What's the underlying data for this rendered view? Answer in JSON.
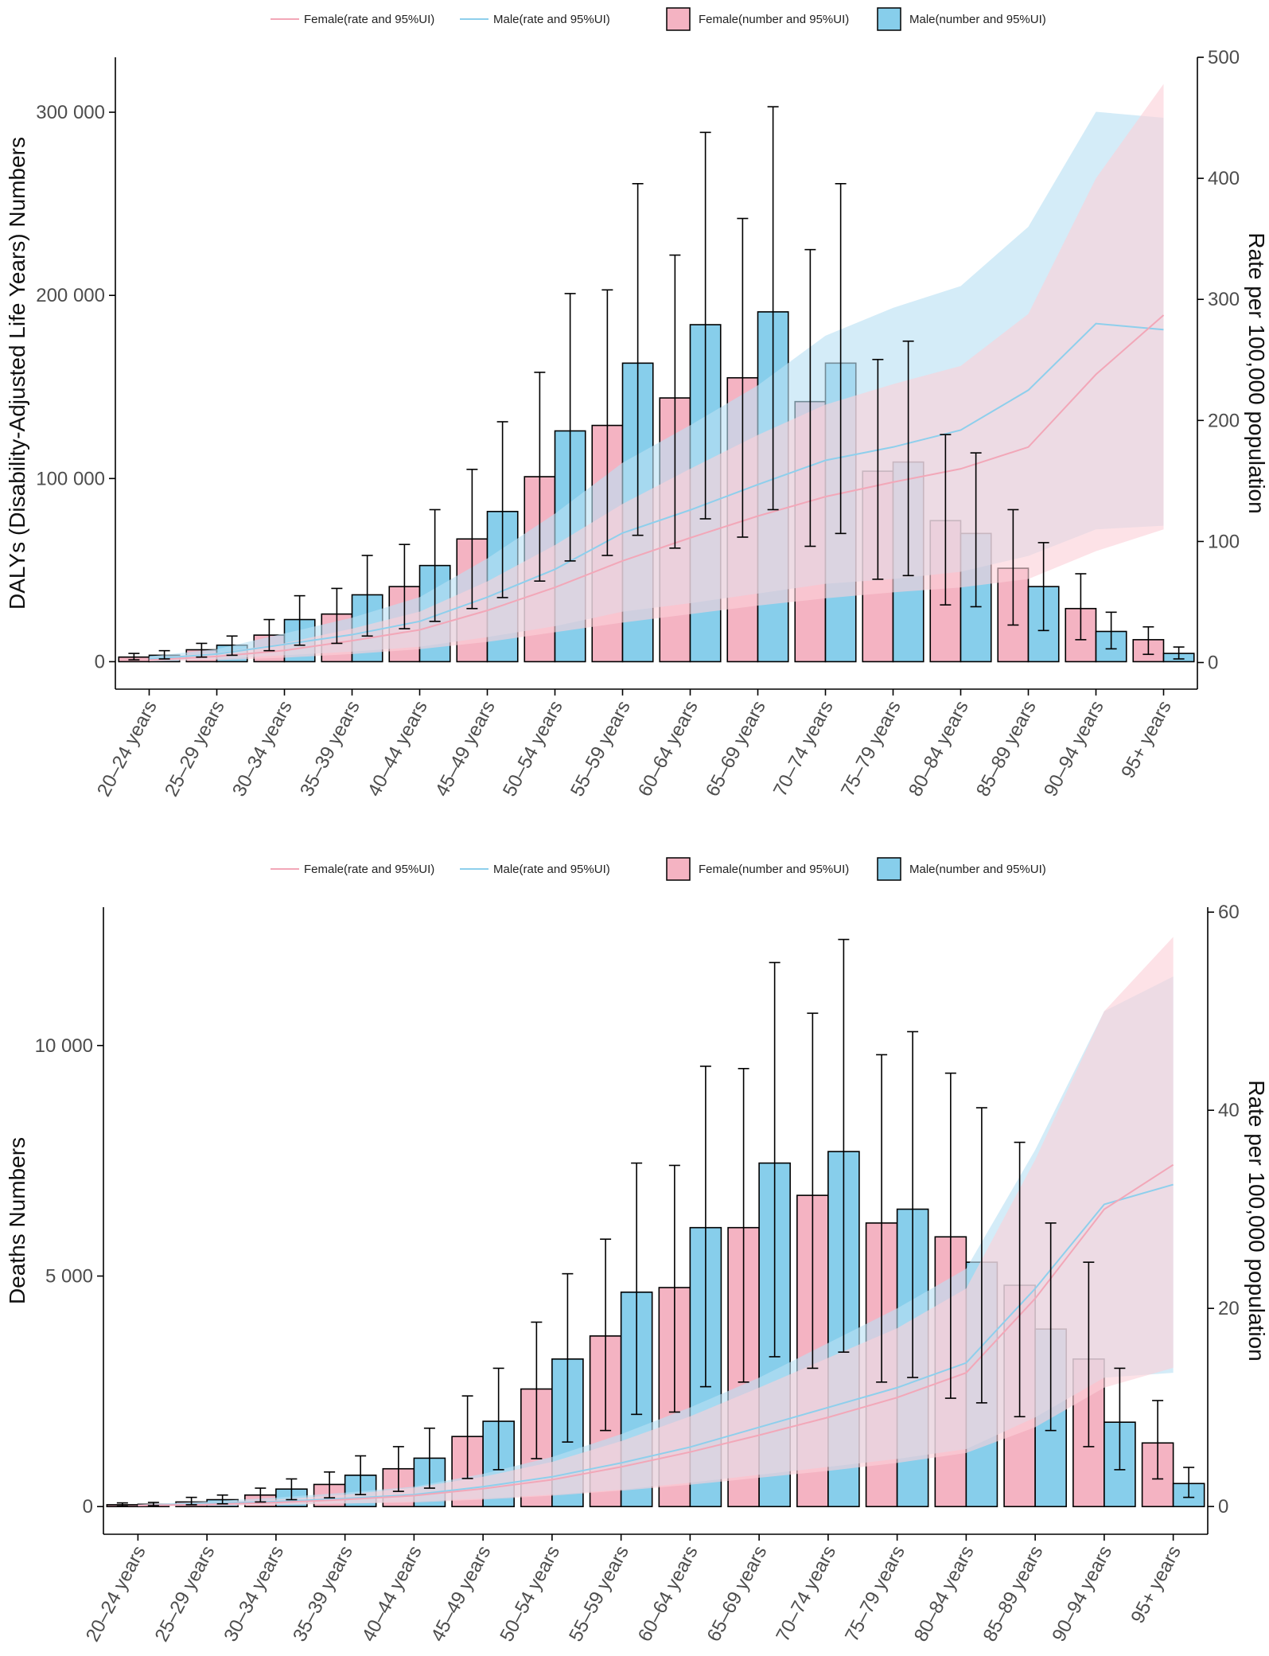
{
  "legend": {
    "female_rate": "Female(rate and 95%UI)",
    "male_rate": "Male(rate and 95%UI)",
    "female_number": "Female(number and 95%UI)",
    "male_number": "Male(number and 95%UI)"
  },
  "colors": {
    "female_bar": "#f4b3c2",
    "male_bar": "#87ceeb",
    "female_line": "#f2a7b8",
    "male_line": "#8ecfec",
    "female_band": "#fbd0d8",
    "male_band": "#b9e0f4",
    "axis": "#000000"
  },
  "chart_data": [
    {
      "type": "bar",
      "title": "",
      "xlabel": "",
      "ylabel": "DALYs (Disability-Adjusted Life Years) Numbers",
      "y2label": "Rate per 100,000 population",
      "categories": [
        "20–24 years",
        "25–29 years",
        "30–34 years",
        "35–39 years",
        "40–44 years",
        "45–49 years",
        "50–54 years",
        "55–59 years",
        "60–64 years",
        "65–69 years",
        "70–74 years",
        "75–79 years",
        "80–84 years",
        "85–89 years",
        "90–94 years",
        "95+ years"
      ],
      "ylim": [
        -15000,
        330000
      ],
      "yticks": [
        0,
        100000,
        200000,
        300000
      ],
      "ytick_labels": [
        "0",
        "100 000",
        "200 000",
        "300 000"
      ],
      "y2lim": [
        -22,
        500
      ],
      "y2ticks": [
        0,
        100,
        200,
        300,
        400,
        500
      ],
      "y2tick_labels": [
        "0",
        "100",
        "200",
        "300",
        "400",
        "500"
      ],
      "series": [
        {
          "name": "Female(number and 95%UI)",
          "values": [
            2500,
            6500,
            14500,
            26000,
            41000,
            67000,
            101000,
            129000,
            144000,
            155000,
            142000,
            104000,
            77000,
            51000,
            29000,
            12000
          ],
          "lower": [
            1000,
            2500,
            6000,
            10000,
            18000,
            29000,
            44000,
            58000,
            62000,
            68000,
            63000,
            45000,
            31000,
            20000,
            12000,
            4000
          ],
          "upper": [
            4500,
            10000,
            23000,
            40000,
            64000,
            105000,
            158000,
            203000,
            222000,
            242000,
            225000,
            165000,
            124000,
            83000,
            48000,
            19000
          ]
        },
        {
          "name": "Male(number and 95%UI)",
          "values": [
            3500,
            9000,
            23000,
            36500,
            52500,
            82000,
            126000,
            163000,
            184000,
            191000,
            163000,
            109000,
            70000,
            41000,
            16500,
            4500
          ],
          "lower": [
            1500,
            3500,
            9000,
            14000,
            22000,
            35000,
            55000,
            69000,
            78000,
            83000,
            70000,
            47000,
            30000,
            17000,
            7000,
            1500
          ],
          "upper": [
            6000,
            14000,
            36000,
            58000,
            83000,
            131000,
            201000,
            261000,
            289000,
            303000,
            261000,
            175000,
            114000,
            65000,
            27000,
            8000
          ]
        },
        {
          "name": "Female(rate and 95%UI)",
          "axis": "right",
          "values": [
            2,
            5,
            10,
            18,
            27,
            43,
            62,
            84,
            103,
            121,
            137,
            149,
            160,
            178,
            238,
            287
          ],
          "lower": [
            1,
            2,
            4,
            7,
            11,
            17,
            25,
            33,
            40,
            47,
            53,
            58,
            62,
            69,
            92,
            110
          ],
          "upper": [
            4,
            8,
            16,
            28,
            42,
            67,
            97,
            131,
            160,
            188,
            213,
            230,
            245,
            288,
            400,
            478
          ]
        },
        {
          "name": "Male(rate and 95%UI)",
          "axis": "right",
          "values": [
            3,
            7,
            15,
            23,
            34,
            54,
            77,
            107,
            126,
            147,
            167,
            178,
            192,
            225,
            280,
            275
          ],
          "lower": [
            1,
            3,
            6,
            9,
            13,
            21,
            30,
            42,
            49,
            57,
            65,
            69,
            75,
            88,
            110,
            113
          ],
          "upper": [
            5,
            11,
            24,
            37,
            54,
            86,
            123,
            165,
            196,
            229,
            270,
            293,
            311,
            360,
            455,
            450
          ]
        }
      ]
    },
    {
      "type": "bar",
      "title": "",
      "xlabel": "",
      "ylabel": "Deaths Numbers",
      "y2label": "Rate per 100,000 population",
      "categories": [
        "20–24 years",
        "25–29 years",
        "30–34 years",
        "35–39 years",
        "40–44 years",
        "45–49 years",
        "50–54 years",
        "55–59 years",
        "60–64 years",
        "65–69 years",
        "70–74 years",
        "75–79 years",
        "80–84 years",
        "85–89 years",
        "90–94 years",
        "95+ years"
      ],
      "ylim": [
        -600,
        13000
      ],
      "yticks": [
        0,
        5000,
        10000
      ],
      "ytick_labels": [
        "0",
        "5 000",
        "10 000"
      ],
      "y2lim": [
        -2.8,
        60.5
      ],
      "y2ticks": [
        0,
        20,
        40,
        60
      ],
      "y2tick_labels": [
        "0",
        "20",
        "40",
        "60"
      ],
      "series": [
        {
          "name": "Female(number and 95%UI)",
          "values": [
            40,
            100,
            250,
            480,
            820,
            1520,
            2550,
            3700,
            4750,
            6050,
            6750,
            6150,
            5850,
            4800,
            3200,
            1380
          ],
          "lower": [
            10,
            40,
            100,
            190,
            330,
            610,
            1040,
            1650,
            2050,
            2700,
            3000,
            2700,
            2350,
            1950,
            1300,
            600
          ],
          "upper": [
            80,
            200,
            400,
            750,
            1300,
            2400,
            4000,
            5800,
            7400,
            9500,
            10700,
            9800,
            9400,
            7900,
            5300,
            2300
          ]
        },
        {
          "name": "Male(number and 95%UI)",
          "values": [
            50,
            150,
            380,
            680,
            1050,
            1850,
            3200,
            4650,
            6050,
            7450,
            7700,
            6450,
            5300,
            3850,
            1830,
            500
          ],
          "lower": [
            20,
            60,
            150,
            260,
            400,
            800,
            1400,
            2000,
            2600,
            3250,
            3350,
            2800,
            2250,
            1650,
            800,
            200
          ],
          "upper": [
            90,
            250,
            600,
            1100,
            1700,
            3000,
            5050,
            7450,
            9550,
            11800,
            12300,
            10300,
            8650,
            6150,
            3000,
            850
          ]
        },
        {
          "name": "Female(rate and 95%UI)",
          "axis": "right",
          "values": [
            0.1,
            0.2,
            0.4,
            0.7,
            1.1,
            1.8,
            2.7,
            4.0,
            5.5,
            7.2,
            9.0,
            11.0,
            13.5,
            21.0,
            30.0,
            34.5
          ],
          "lower": [
            0.03,
            0.06,
            0.15,
            0.3,
            0.4,
            0.7,
            1.1,
            1.6,
            2.2,
            2.9,
            3.6,
            4.4,
            5.4,
            8.0,
            12.0,
            14.0
          ],
          "upper": [
            0.2,
            0.4,
            0.7,
            1.2,
            1.9,
            3.0,
            4.5,
            6.6,
            9.1,
            12.0,
            15.0,
            18.0,
            22.0,
            35.0,
            50.0,
            57.5
          ]
        },
        {
          "name": "Male(rate and 95%UI)",
          "axis": "right",
          "values": [
            0.1,
            0.3,
            0.5,
            0.8,
            1.2,
            2.0,
            3.0,
            4.4,
            6.0,
            8.0,
            10.0,
            12.0,
            14.5,
            22.0,
            30.5,
            32.5
          ],
          "lower": [
            0.04,
            0.1,
            0.2,
            0.3,
            0.5,
            0.8,
            1.2,
            1.7,
            2.4,
            3.2,
            4.0,
            4.8,
            5.8,
            9.0,
            13.0,
            13.5
          ],
          "upper": [
            0.2,
            0.5,
            0.9,
            1.4,
            2.0,
            3.3,
            5.0,
            7.3,
            10.0,
            13.0,
            16.5,
            20.0,
            24.0,
            36.0,
            50.0,
            53.5
          ]
        }
      ]
    }
  ]
}
